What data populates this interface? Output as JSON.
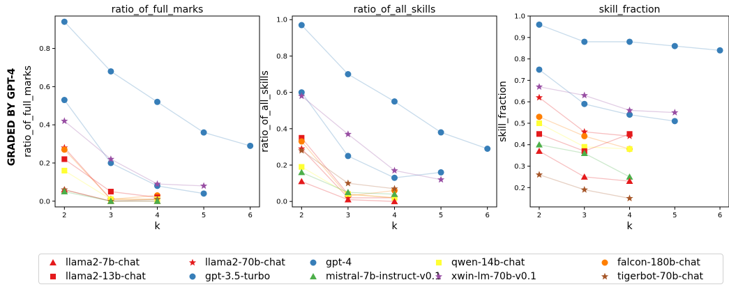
{
  "side_label": "GRADED BY GPT-4",
  "colors": {
    "llama2-7b-chat": "#e41a1c",
    "llama2-13b-chat": "#e41a1c",
    "llama2-70b-chat": "#e41a1c",
    "gpt-3.5-turbo": "#377eb8",
    "gpt-4": "#377eb8",
    "mistral-7b-instruct-v0.1": "#4daf4a",
    "qwen-14b-chat": "#ffff33",
    "xwin-lm-70b-v0.1": "#984ea3",
    "falcon-180b-chat": "#ff7f00",
    "tigerbot-70b-chat": "#a65628"
  },
  "markers": {
    "llama2-7b-chat": "triangle",
    "llama2-13b-chat": "square",
    "llama2-70b-chat": "star",
    "gpt-3.5-turbo": "circle",
    "gpt-4": "circle",
    "mistral-7b-instruct-v0.1": "triangle",
    "qwen-14b-chat": "square",
    "xwin-lm-70b-v0.1": "star",
    "falcon-180b-chat": "circle",
    "tigerbot-70b-chat": "star"
  },
  "legend": {
    "placement": "bottom",
    "items": [
      "llama2-7b-chat",
      "llama2-13b-chat",
      "llama2-70b-chat",
      "gpt-3.5-turbo",
      "gpt-4",
      "mistral-7b-instruct-v0.1",
      "qwen-14b-chat",
      "xwin-lm-70b-v0.1",
      "falcon-180b-chat",
      "tigerbot-70b-chat"
    ]
  },
  "chart_data": [
    {
      "type": "line",
      "title": "ratio_of_full_marks",
      "xlabel": "k",
      "ylabel": "ratio_of_full_marks",
      "xlim": [
        1.8,
        6.2
      ],
      "ylim": [
        -0.03,
        0.97
      ],
      "xticks": [
        2,
        3,
        4,
        5,
        6
      ],
      "yticks": [
        0.0,
        0.2,
        0.4,
        0.6,
        0.8
      ],
      "ytick_labels": [
        "0.0",
        "0.2",
        "0.4",
        "0.6",
        "0.8"
      ],
      "grid": false,
      "series": [
        {
          "name": "gpt-4",
          "x": [
            2,
            3,
            4,
            5,
            6
          ],
          "y": [
            0.94,
            0.68,
            0.52,
            0.36,
            0.29
          ]
        },
        {
          "name": "gpt-3.5-turbo",
          "x": [
            2,
            3,
            4,
            5
          ],
          "y": [
            0.53,
            0.2,
            0.08,
            0.04
          ]
        },
        {
          "name": "xwin-lm-70b-v0.1",
          "x": [
            2,
            3,
            4,
            5
          ],
          "y": [
            0.42,
            0.22,
            0.09,
            0.08
          ]
        },
        {
          "name": "llama2-70b-chat",
          "x": [
            2,
            3,
            4
          ],
          "y": [
            0.28,
            0.01,
            0.01
          ]
        },
        {
          "name": "falcon-180b-chat",
          "x": [
            2,
            3,
            4
          ],
          "y": [
            0.27,
            0.01,
            0.03
          ]
        },
        {
          "name": "llama2-13b-chat",
          "x": [
            2,
            3,
            4
          ],
          "y": [
            0.22,
            0.05,
            0.02
          ]
        },
        {
          "name": "qwen-14b-chat",
          "x": [
            2,
            3,
            4
          ],
          "y": [
            0.16,
            0.01,
            0.01
          ]
        },
        {
          "name": "llama2-7b-chat",
          "x": [
            2,
            3,
            4
          ],
          "y": [
            0.06,
            0.0,
            0.0
          ]
        },
        {
          "name": "tigerbot-70b-chat",
          "x": [
            2,
            3,
            4
          ],
          "y": [
            0.06,
            0.0,
            0.01
          ]
        },
        {
          "name": "mistral-7b-instruct-v0.1",
          "x": [
            2,
            3,
            4
          ],
          "y": [
            0.05,
            0.0,
            0.0
          ]
        }
      ]
    },
    {
      "type": "line",
      "title": "ratio_of_all_skills",
      "xlabel": "k",
      "ylabel": "ratio_of_all_skills",
      "xlim": [
        1.8,
        6.2
      ],
      "ylim": [
        -0.03,
        1.02
      ],
      "xticks": [
        2,
        3,
        4,
        5,
        6
      ],
      "yticks": [
        0.0,
        0.2,
        0.4,
        0.6,
        0.8,
        1.0
      ],
      "ytick_labels": [
        "0.0",
        "0.2",
        "0.4",
        "0.6",
        "0.8",
        "1.0"
      ],
      "grid": false,
      "series": [
        {
          "name": "gpt-4",
          "x": [
            2,
            3,
            4,
            5,
            6
          ],
          "y": [
            0.97,
            0.7,
            0.55,
            0.38,
            0.29
          ]
        },
        {
          "name": "gpt-3.5-turbo",
          "x": [
            2,
            3,
            4,
            5
          ],
          "y": [
            0.6,
            0.25,
            0.13,
            0.16
          ]
        },
        {
          "name": "xwin-lm-70b-v0.1",
          "x": [
            2,
            3,
            4,
            5
          ],
          "y": [
            0.58,
            0.37,
            0.17,
            0.12
          ]
        },
        {
          "name": "llama2-13b-chat",
          "x": [
            2,
            3,
            4
          ],
          "y": [
            0.35,
            0.04,
            0.02
          ]
        },
        {
          "name": "falcon-180b-chat",
          "x": [
            2,
            3,
            4
          ],
          "y": [
            0.33,
            0.03,
            0.06
          ]
        },
        {
          "name": "llama2-70b-chat",
          "x": [
            2,
            3,
            4
          ],
          "y": [
            0.29,
            0.02,
            0.02
          ]
        },
        {
          "name": "tigerbot-70b-chat",
          "x": [
            2,
            3,
            4
          ],
          "y": [
            0.28,
            0.1,
            0.07
          ]
        },
        {
          "name": "qwen-14b-chat",
          "x": [
            2,
            3,
            4
          ],
          "y": [
            0.19,
            0.04,
            0.02
          ]
        },
        {
          "name": "mistral-7b-instruct-v0.1",
          "x": [
            2,
            3,
            4
          ],
          "y": [
            0.16,
            0.05,
            0.04
          ]
        },
        {
          "name": "llama2-7b-chat",
          "x": [
            2,
            3,
            4
          ],
          "y": [
            0.11,
            0.01,
            0.0
          ]
        }
      ]
    },
    {
      "type": "line",
      "title": "skill_fraction",
      "xlabel": "k",
      "ylabel": "skill_fraction",
      "xlim": [
        1.8,
        6.2
      ],
      "ylim": [
        0.11,
        1.0
      ],
      "xticks": [
        2,
        3,
        4,
        5,
        6
      ],
      "yticks": [
        0.2,
        0.3,
        0.4,
        0.5,
        0.6,
        0.7,
        0.8,
        0.9,
        1.0
      ],
      "ytick_labels": [
        "0.2",
        "0.3",
        "0.4",
        "0.5",
        "0.6",
        "0.7",
        "0.8",
        "0.9",
        "1.0"
      ],
      "grid": false,
      "series": [
        {
          "name": "gpt-4",
          "x": [
            2,
            3,
            4,
            5,
            6
          ],
          "y": [
            0.96,
            0.88,
            0.88,
            0.86,
            0.84
          ]
        },
        {
          "name": "gpt-3.5-turbo",
          "x": [
            2,
            3,
            4,
            5
          ],
          "y": [
            0.75,
            0.59,
            0.54,
            0.51
          ]
        },
        {
          "name": "xwin-lm-70b-v0.1",
          "x": [
            2,
            3,
            4,
            5
          ],
          "y": [
            0.67,
            0.63,
            0.56,
            0.55
          ]
        },
        {
          "name": "llama2-70b-chat",
          "x": [
            2,
            3,
            4
          ],
          "y": [
            0.62,
            0.46,
            0.44
          ]
        },
        {
          "name": "falcon-180b-chat",
          "x": [
            2,
            3,
            4
          ],
          "y": [
            0.53,
            0.44,
            0.38
          ]
        },
        {
          "name": "qwen-14b-chat",
          "x": [
            2,
            3,
            4
          ],
          "y": [
            0.5,
            0.39,
            0.38
          ]
        },
        {
          "name": "llama2-13b-chat",
          "x": [
            2,
            3,
            4
          ],
          "y": [
            0.45,
            0.37,
            0.45
          ]
        },
        {
          "name": "mistral-7b-instruct-v0.1",
          "x": [
            2,
            3,
            4
          ],
          "y": [
            0.4,
            0.36,
            0.25
          ]
        },
        {
          "name": "llama2-7b-chat",
          "x": [
            2,
            3,
            4
          ],
          "y": [
            0.37,
            0.25,
            0.23
          ]
        },
        {
          "name": "tigerbot-70b-chat",
          "x": [
            2,
            3,
            4
          ],
          "y": [
            0.26,
            0.19,
            0.15
          ]
        }
      ]
    }
  ]
}
